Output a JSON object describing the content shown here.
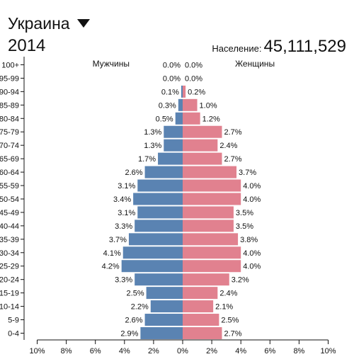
{
  "header": {
    "country": "Украина",
    "year": "2014",
    "population_label": "Население:",
    "population_value": "45,111,529"
  },
  "colors": {
    "male": "#5a83b2",
    "female": "#e1818f",
    "axis": "#111111"
  },
  "chart_data": {
    "type": "bar",
    "orientation": "horizontal-butterfly",
    "categories": [
      "100+",
      "95-99",
      "90-94",
      "85-89",
      "80-84",
      "75-79",
      "70-74",
      "65-69",
      "60-64",
      "55-59",
      "50-54",
      "45-49",
      "40-44",
      "35-39",
      "30-34",
      "25-29",
      "20-24",
      "15-19",
      "10-14",
      "5-9",
      "0-4"
    ],
    "series": [
      {
        "name": "Мужчины",
        "side": "left",
        "values": [
          0.0,
          0.0,
          0.1,
          0.3,
          0.5,
          1.3,
          1.3,
          1.7,
          2.6,
          3.1,
          3.4,
          3.1,
          3.3,
          3.7,
          4.1,
          4.2,
          3.3,
          2.5,
          2.2,
          2.6,
          2.9
        ]
      },
      {
        "name": "Женщины",
        "side": "right",
        "values": [
          0.0,
          0.0,
          0.2,
          1.0,
          1.2,
          2.7,
          2.4,
          2.7,
          3.7,
          4.0,
          4.0,
          3.5,
          3.5,
          3.8,
          4.0,
          4.0,
          3.2,
          2.4,
          2.1,
          2.5,
          2.7
        ]
      }
    ],
    "value_unit": "%",
    "xlim": [
      -10,
      10
    ],
    "xticks": [
      "10%",
      "8%",
      "6%",
      "4%",
      "2%",
      "0%",
      "2%",
      "4%",
      "6%",
      "8%",
      "10%"
    ],
    "grid": false
  }
}
